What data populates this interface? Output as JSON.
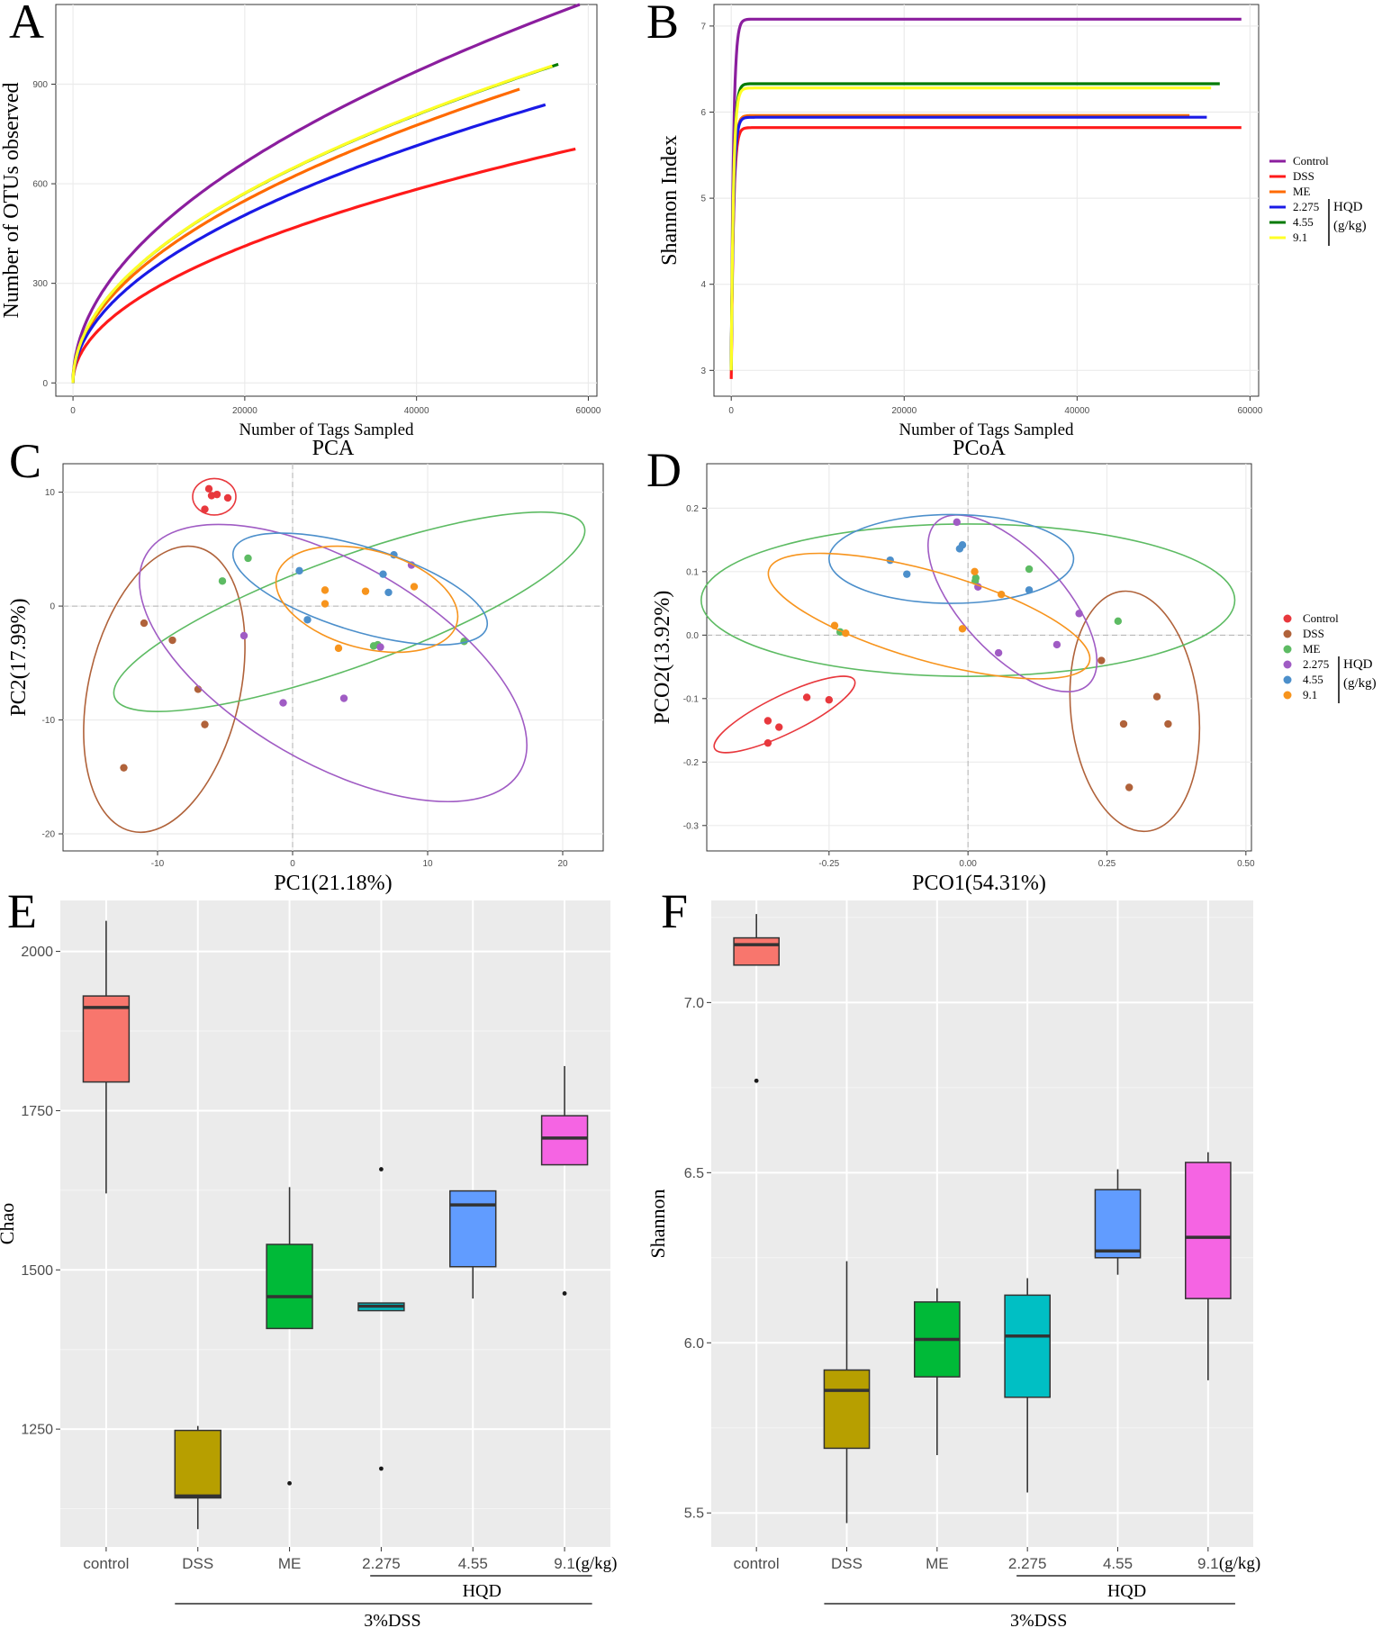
{
  "colors": {
    "control": "#8B1E9E",
    "dss": "#FF1A1A",
    "me": "#FF6A00",
    "hqd_low": "#1A1AE6",
    "hqd_mid": "#007A00",
    "hqd_high": "#FFFF26",
    "pt_control": "#E8383D",
    "pt_dss": "#B0623A",
    "pt_me": "#5DBB63",
    "pt_low": "#A05CC4",
    "pt_mid": "#4C8FCB",
    "pt_high": "#F7941D",
    "box_control": "#F8766D",
    "box_dss": "#B79F00",
    "box_me": "#00BA38",
    "box_low": "#00BFC4",
    "box_mid": "#619CFF",
    "box_high": "#F564E3"
  },
  "legend": {
    "items": [
      "Control",
      "DSS",
      "ME",
      "2.275",
      "4.55",
      "9.1"
    ],
    "hqd_label": "HQD",
    "unit_label": "(g/kg)"
  },
  "chart_data": [
    {
      "panel": "A",
      "type": "line",
      "title": "",
      "xlabel": "Number of Tags Sampled",
      "ylabel": "Number of OTUs observed",
      "xlim": [
        -2000,
        61000
      ],
      "ylim": [
        -40,
        1140
      ],
      "xticks": [
        0,
        20000,
        40000,
        60000
      ],
      "yticks": [
        0,
        300,
        600,
        900
      ],
      "series": [
        {
          "name": "Control",
          "color_key": "control",
          "x_max": 59000,
          "y_end": 1140,
          "exponent": 0.5
        },
        {
          "name": "DSS",
          "color_key": "dss",
          "x_max": 58500,
          "y_end": 705,
          "exponent": 0.5
        },
        {
          "name": "ME",
          "color_key": "me",
          "x_max": 52000,
          "y_end": 885,
          "exponent": 0.5
        },
        {
          "name": "2.275",
          "color_key": "hqd_low",
          "x_max": 55000,
          "y_end": 838,
          "exponent": 0.5
        },
        {
          "name": "4.55",
          "color_key": "hqd_mid",
          "x_max": 56500,
          "y_end": 960,
          "exponent": 0.5
        },
        {
          "name": "9.1",
          "color_key": "hqd_high",
          "x_max": 55800,
          "y_end": 955,
          "exponent": 0.5
        }
      ]
    },
    {
      "panel": "B",
      "type": "line",
      "title": "",
      "xlabel": "Number of Tags Sampled",
      "ylabel": "Shannon Index",
      "xlim": [
        -2000,
        61000
      ],
      "ylim": [
        2.7,
        7.25
      ],
      "xticks": [
        0,
        20000,
        40000,
        60000
      ],
      "yticks": [
        3,
        4,
        5,
        6,
        7
      ],
      "series": [
        {
          "name": "Control",
          "color_key": "control",
          "x_max": 59000,
          "y_start": 3.0,
          "y_plateau": 7.08
        },
        {
          "name": "DSS",
          "color_key": "dss",
          "x_max": 59000,
          "y_start": 2.9,
          "y_plateau": 5.82
        },
        {
          "name": "ME",
          "color_key": "me",
          "x_max": 53000,
          "y_start": 3.0,
          "y_plateau": 5.96
        },
        {
          "name": "2.275",
          "color_key": "hqd_low",
          "x_max": 55000,
          "y_start": 3.0,
          "y_plateau": 5.94
        },
        {
          "name": "4.55",
          "color_key": "hqd_mid",
          "x_max": 56500,
          "y_start": 3.0,
          "y_plateau": 6.33
        },
        {
          "name": "9.1",
          "color_key": "hqd_high",
          "x_max": 55500,
          "y_start": 3.0,
          "y_plateau": 6.28
        }
      ]
    },
    {
      "panel": "C",
      "type": "scatter",
      "title": "PCA",
      "xlabel": "PC1(21.18%)",
      "ylabel": "PC2(17.99%)",
      "xlim": [
        -17,
        23
      ],
      "ylim": [
        -21.5,
        12.5
      ],
      "xticks": [
        -10,
        0,
        10,
        20
      ],
      "yticks": [
        -20,
        -10,
        0,
        10
      ],
      "groups": [
        {
          "name": "Control",
          "color_key": "pt_control",
          "points": [
            [
              -6.2,
              10.3
            ],
            [
              -6.0,
              9.7
            ],
            [
              -5.6,
              9.8
            ],
            [
              -6.5,
              8.5
            ],
            [
              -4.8,
              9.5
            ]
          ],
          "ellipse": {
            "cx": -5.8,
            "cy": 9.6,
            "rx": 1.6,
            "ry": 1.6,
            "angle": 0
          }
        },
        {
          "name": "DSS",
          "color_key": "pt_dss",
          "points": [
            [
              -11.0,
              -1.5
            ],
            [
              -8.9,
              -3.0
            ],
            [
              -7.0,
              -7.3
            ],
            [
              -6.5,
              -10.4
            ],
            [
              -12.5,
              -14.2
            ]
          ],
          "ellipse": {
            "cx": -9.5,
            "cy": -7.3,
            "rx": 5.6,
            "ry": 12.8,
            "angle": -13
          }
        },
        {
          "name": "ME",
          "color_key": "pt_me",
          "points": [
            [
              -3.3,
              4.2
            ],
            [
              -5.2,
              2.2
            ],
            [
              6.0,
              -3.5
            ],
            [
              6.3,
              -3.4
            ],
            [
              12.7,
              -3.1
            ]
          ],
          "ellipse": {
            "cx": 4.2,
            "cy": -0.5,
            "rx": 18.5,
            "ry": 4.8,
            "angle": 20
          }
        },
        {
          "name": "2.275",
          "color_key": "pt_low",
          "points": [
            [
              8.8,
              3.6
            ],
            [
              -3.6,
              -2.6
            ],
            [
              -0.7,
              -8.5
            ],
            [
              3.8,
              -8.1
            ],
            [
              6.5,
              -3.6
            ]
          ],
          "ellipse": {
            "cx": 3.0,
            "cy": -5.0,
            "rx": 16.0,
            "ry": 8.8,
            "angle": -30
          }
        },
        {
          "name": "4.55",
          "color_key": "pt_mid",
          "points": [
            [
              0.5,
              3.1
            ],
            [
              1.1,
              -1.2
            ],
            [
              6.7,
              2.8
            ],
            [
              7.5,
              4.5
            ],
            [
              7.1,
              1.2
            ]
          ],
          "ellipse": {
            "cx": 5.0,
            "cy": 1.5,
            "rx": 9.8,
            "ry": 3.7,
            "angle": -17
          }
        },
        {
          "name": "9.1",
          "color_key": "pt_high",
          "points": [
            [
              2.4,
              1.4
            ],
            [
              2.4,
              0.2
            ],
            [
              5.4,
              1.3
            ],
            [
              9.0,
              1.7
            ],
            [
              3.4,
              -3.7
            ]
          ],
          "ellipse": {
            "cx": 5.5,
            "cy": 0.6,
            "rx": 6.9,
            "ry": 4.3,
            "angle": -15
          }
        }
      ]
    },
    {
      "panel": "D",
      "type": "scatter",
      "title": "PCoA",
      "xlabel": "PCO1(54.31%)",
      "ylabel": "PCO2(13.92%)",
      "xlim": [
        -0.47,
        0.51
      ],
      "ylim": [
        -0.34,
        0.27
      ],
      "xticks": [
        -0.25,
        0.0,
        0.25,
        0.5
      ],
      "xtick_labels": [
        "-0.25",
        "0.00",
        "0.25",
        "0.50"
      ],
      "yticks": [
        -0.3,
        -0.2,
        -0.1,
        0.0,
        0.1,
        0.2
      ],
      "ytick_labels": [
        "-0.3",
        "-0.2",
        "-0.1",
        "0.0",
        "0.1",
        "0.2"
      ],
      "groups": [
        {
          "name": "Control",
          "color_key": "pt_control",
          "points": [
            [
              -0.36,
              -0.135
            ],
            [
              -0.34,
              -0.145
            ],
            [
              -0.29,
              -0.098
            ],
            [
              -0.25,
              -0.102
            ],
            [
              -0.36,
              -0.17
            ]
          ],
          "ellipse": {
            "cx": -0.33,
            "cy": -0.125,
            "rx": 0.14,
            "ry": 0.03,
            "angle": 26
          }
        },
        {
          "name": "DSS",
          "color_key": "pt_dss",
          "points": [
            [
              0.24,
              -0.04
            ],
            [
              0.28,
              -0.14
            ],
            [
              0.34,
              -0.097
            ],
            [
              0.36,
              -0.14
            ],
            [
              0.29,
              -0.24
            ]
          ],
          "ellipse": {
            "cx": 0.3,
            "cy": -0.12,
            "rx": 0.115,
            "ry": 0.19,
            "angle": 6
          }
        },
        {
          "name": "ME",
          "color_key": "pt_me",
          "points": [
            [
              -0.23,
              0.005
            ],
            [
              0.014,
              0.09
            ],
            [
              0.11,
              0.104
            ],
            [
              0.27,
              0.022
            ],
            [
              0.013,
              0.085
            ]
          ],
          "ellipse": {
            "cx": 0.0,
            "cy": 0.055,
            "rx": 0.48,
            "ry": 0.12,
            "angle": 0
          }
        },
        {
          "name": "2.275",
          "color_key": "pt_low",
          "points": [
            [
              -0.02,
              0.178
            ],
            [
              0.018,
              0.076
            ],
            [
              0.055,
              -0.028
            ],
            [
              0.16,
              -0.015
            ],
            [
              0.2,
              0.034
            ]
          ],
          "ellipse": {
            "cx": 0.08,
            "cy": 0.05,
            "rx": 0.2,
            "ry": 0.08,
            "angle": -47
          }
        },
        {
          "name": "4.55",
          "color_key": "pt_mid",
          "points": [
            [
              -0.14,
              0.118
            ],
            [
              -0.11,
              0.096
            ],
            [
              -0.01,
              0.142
            ],
            [
              -0.015,
              0.136
            ],
            [
              0.11,
              0.071
            ]
          ],
          "ellipse": {
            "cx": -0.03,
            "cy": 0.12,
            "rx": 0.22,
            "ry": 0.07,
            "angle": 0
          }
        },
        {
          "name": "9.1",
          "color_key": "pt_high",
          "points": [
            [
              -0.24,
              0.015
            ],
            [
              -0.22,
              0.003
            ],
            [
              0.012,
              0.1
            ],
            [
              0.06,
              0.064
            ],
            [
              -0.01,
              0.01
            ]
          ],
          "ellipse": {
            "cx": -0.07,
            "cy": 0.03,
            "rx": 0.3,
            "ry": 0.07,
            "angle": -16
          }
        }
      ]
    },
    {
      "panel": "E",
      "type": "box",
      "xlabel": "",
      "ylabel": "Chao",
      "ylim": [
        1065,
        2080
      ],
      "yticks": [
        1250,
        1500,
        1750,
        2000
      ],
      "categories": [
        "control",
        "DSS",
        "ME",
        "2.275",
        "4.55",
        "9.1"
      ],
      "unit_label": "(g/kg)",
      "hqd_label": "HQD",
      "dss_label": "3%DSS",
      "boxes": [
        {
          "name": "control",
          "color_key": "box_control",
          "low": 1620,
          "q1": 1795,
          "median": 1912,
          "q3": 1930,
          "high": 2048,
          "outliers": []
        },
        {
          "name": "DSS",
          "color_key": "box_dss",
          "low": 1093,
          "q1": 1142,
          "median": 1145,
          "q3": 1248,
          "high": 1255,
          "outliers": []
        },
        {
          "name": "ME",
          "color_key": "box_me",
          "low": 1408,
          "q1": 1408,
          "median": 1458,
          "q3": 1540,
          "high": 1630,
          "outliers": [
            1165
          ]
        },
        {
          "name": "2.275",
          "color_key": "box_low",
          "low": 1436,
          "q1": 1436,
          "median": 1443,
          "q3": 1448,
          "high": 1448,
          "outliers": [
            1658,
            1188
          ]
        },
        {
          "name": "4.55",
          "color_key": "box_mid",
          "low": 1455,
          "q1": 1505,
          "median": 1602,
          "q3": 1624,
          "high": 1624,
          "outliers": []
        },
        {
          "name": "9.1",
          "color_key": "box_high",
          "low": 1665,
          "q1": 1665,
          "median": 1707,
          "q3": 1742,
          "high": 1820,
          "outliers": [
            1463
          ]
        }
      ]
    },
    {
      "panel": "F",
      "type": "box",
      "xlabel": "",
      "ylabel": "Shannon",
      "ylim": [
        5.4,
        7.3
      ],
      "yticks": [
        5.5,
        6.0,
        6.5,
        7.0
      ],
      "ytick_labels": [
        "5.5",
        "6.0",
        "6.5",
        "7.0"
      ],
      "categories": [
        "control",
        "DSS",
        "ME",
        "2.275",
        "4.55",
        "9.1"
      ],
      "unit_label": "(g/kg)",
      "hqd_label": "HQD",
      "dss_label": "3%DSS",
      "boxes": [
        {
          "name": "control",
          "color_key": "box_control",
          "low": 7.11,
          "q1": 7.11,
          "median": 7.17,
          "q3": 7.19,
          "high": 7.26,
          "outliers": [
            6.77
          ]
        },
        {
          "name": "DSS",
          "color_key": "box_dss",
          "low": 5.47,
          "q1": 5.69,
          "median": 5.86,
          "q3": 5.92,
          "high": 6.24,
          "outliers": []
        },
        {
          "name": "ME",
          "color_key": "box_me",
          "low": 5.67,
          "q1": 5.9,
          "median": 6.01,
          "q3": 6.12,
          "high": 6.16,
          "outliers": []
        },
        {
          "name": "2.275",
          "color_key": "box_low",
          "low": 5.56,
          "q1": 5.84,
          "median": 6.02,
          "q3": 6.14,
          "high": 6.19,
          "outliers": []
        },
        {
          "name": "4.55",
          "color_key": "box_mid",
          "low": 6.2,
          "q1": 6.25,
          "median": 6.27,
          "q3": 6.45,
          "high": 6.51,
          "outliers": []
        },
        {
          "name": "9.1",
          "color_key": "box_high",
          "low": 5.89,
          "q1": 6.13,
          "median": 6.31,
          "q3": 6.53,
          "high": 6.56,
          "outliers": []
        }
      ]
    }
  ]
}
